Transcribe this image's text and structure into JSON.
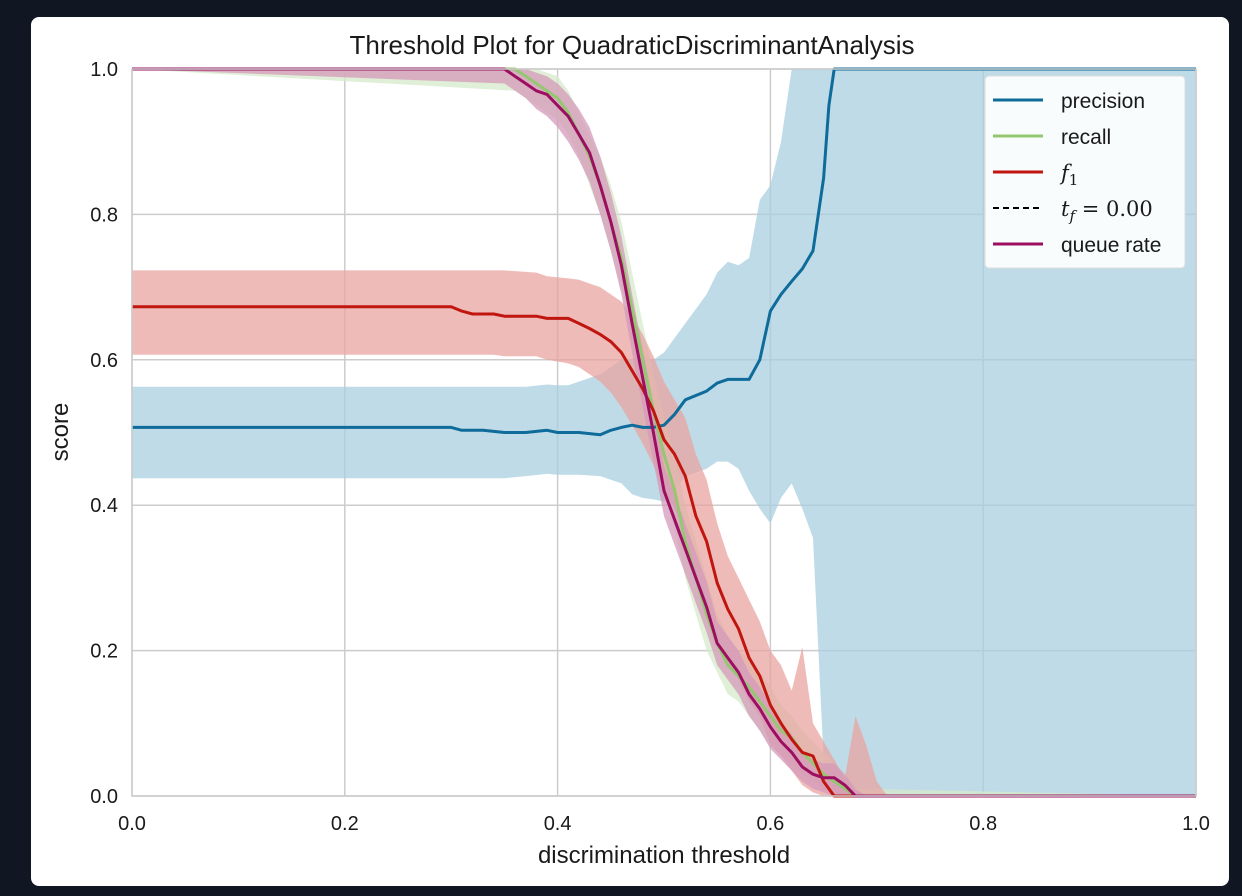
{
  "chart_data": {
    "type": "line",
    "title": "Threshold Plot for QuadraticDiscriminantAnalysis",
    "xlabel": "discrimination threshold",
    "ylabel": "score",
    "xlim": [
      0.0,
      1.0
    ],
    "ylim": [
      0.0,
      1.0
    ],
    "xticks": [
      "0.0",
      "0.2",
      "0.4",
      "0.6",
      "0.8",
      "1.0"
    ],
    "yticks": [
      "0.0",
      "0.2",
      "0.4",
      "0.6",
      "0.8",
      "1.0"
    ],
    "grid": true,
    "legend_position": "upper-right",
    "series": [
      {
        "name": "precision",
        "color": "#0e6b9a",
        "band_color": "#a9cfe0",
        "x": [
          0.0,
          0.3,
          0.31,
          0.33,
          0.35,
          0.37,
          0.39,
          0.4,
          0.41,
          0.42,
          0.44,
          0.45,
          0.46,
          0.47,
          0.48,
          0.49,
          0.5,
          0.51,
          0.52,
          0.54,
          0.55,
          0.56,
          0.57,
          0.58,
          0.59,
          0.6,
          0.61,
          0.62,
          0.63,
          0.64,
          0.65,
          0.655,
          0.66,
          0.665,
          1.0
        ],
        "y": [
          0.507,
          0.507,
          0.503,
          0.503,
          0.5,
          0.5,
          0.503,
          0.5,
          0.5,
          0.5,
          0.497,
          0.503,
          0.507,
          0.51,
          0.507,
          0.507,
          0.51,
          0.525,
          0.545,
          0.557,
          0.568,
          0.573,
          0.573,
          0.573,
          0.6,
          0.667,
          0.69,
          0.708,
          0.725,
          0.75,
          0.85,
          0.95,
          1.0,
          1.0,
          1.0
        ],
        "lower": [
          0.437,
          0.437,
          0.437,
          0.437,
          0.437,
          0.44,
          0.443,
          0.442,
          0.442,
          0.442,
          0.44,
          0.435,
          0.43,
          0.415,
          0.41,
          0.408,
          0.405,
          0.42,
          0.44,
          0.45,
          0.46,
          0.46,
          0.45,
          0.42,
          0.395,
          0.375,
          0.41,
          0.43,
          0.395,
          0.355,
          0.05,
          0.0,
          0.0,
          0.0,
          0.0
        ],
        "upper": [
          0.563,
          0.563,
          0.563,
          0.563,
          0.563,
          0.563,
          0.566,
          0.565,
          0.565,
          0.57,
          0.58,
          0.59,
          0.6,
          0.6,
          0.605,
          0.6,
          0.61,
          0.63,
          0.65,
          0.69,
          0.72,
          0.735,
          0.73,
          0.74,
          0.82,
          0.84,
          0.9,
          1.0,
          1.0,
          1.0,
          1.0,
          1.0,
          1.0,
          1.0,
          1.0
        ]
      },
      {
        "name": "recall",
        "color": "#95c771",
        "band_color": "#d6e9c9",
        "x": [
          0.0,
          0.36,
          0.38,
          0.4,
          0.41,
          0.42,
          0.43,
          0.44,
          0.45,
          0.46,
          0.47,
          0.48,
          0.49,
          0.5,
          0.51,
          0.52,
          0.53,
          0.54,
          0.55,
          0.56,
          0.57,
          0.58,
          0.59,
          0.6,
          0.61,
          0.62,
          0.63,
          0.64,
          0.65,
          0.66,
          0.67,
          0.68,
          1.0
        ],
        "y": [
          1.0,
          1.0,
          0.98,
          0.96,
          0.94,
          0.91,
          0.88,
          0.84,
          0.79,
          0.74,
          0.67,
          0.6,
          0.53,
          0.47,
          0.42,
          0.35,
          0.3,
          0.25,
          0.21,
          0.18,
          0.165,
          0.15,
          0.13,
          0.11,
          0.09,
          0.08,
          0.06,
          0.045,
          0.03,
          0.02,
          0.01,
          0.0,
          0.0
        ],
        "lower": [
          1.0,
          0.97,
          0.95,
          0.93,
          0.91,
          0.88,
          0.84,
          0.8,
          0.75,
          0.7,
          0.63,
          0.55,
          0.48,
          0.42,
          0.37,
          0.3,
          0.25,
          0.2,
          0.17,
          0.14,
          0.13,
          0.11,
          0.09,
          0.07,
          0.055,
          0.045,
          0.03,
          0.02,
          0.01,
          0.0,
          0.0,
          0.0,
          0.0
        ],
        "upper": [
          1.0,
          1.0,
          1.0,
          0.99,
          0.97,
          0.94,
          0.91,
          0.88,
          0.84,
          0.79,
          0.72,
          0.65,
          0.58,
          0.52,
          0.47,
          0.4,
          0.35,
          0.3,
          0.25,
          0.22,
          0.2,
          0.19,
          0.17,
          0.15,
          0.125,
          0.11,
          0.09,
          0.075,
          0.06,
          0.045,
          0.03,
          0.01,
          0.0
        ]
      },
      {
        "name": "f1",
        "color": "#c0160f",
        "band_color": "#e8a4a1",
        "x": [
          0.0,
          0.3,
          0.31,
          0.32,
          0.34,
          0.35,
          0.38,
          0.39,
          0.41,
          0.42,
          0.43,
          0.44,
          0.45,
          0.46,
          0.47,
          0.48,
          0.49,
          0.5,
          0.51,
          0.52,
          0.53,
          0.54,
          0.55,
          0.56,
          0.57,
          0.58,
          0.59,
          0.6,
          0.61,
          0.62,
          0.63,
          0.64,
          0.65,
          0.66,
          0.67,
          0.68,
          0.69,
          0.7,
          0.71,
          1.0
        ],
        "y": [
          0.673,
          0.673,
          0.667,
          0.663,
          0.663,
          0.66,
          0.66,
          0.657,
          0.657,
          0.65,
          0.643,
          0.635,
          0.625,
          0.61,
          0.585,
          0.56,
          0.53,
          0.49,
          0.47,
          0.44,
          0.385,
          0.35,
          0.293,
          0.257,
          0.23,
          0.19,
          0.165,
          0.125,
          0.1,
          0.078,
          0.06,
          0.055,
          0.02,
          0.0,
          0.0,
          0.0,
          0.0,
          0.0,
          0.0,
          0.0
        ],
        "lower": [
          0.607,
          0.607,
          0.607,
          0.607,
          0.607,
          0.605,
          0.605,
          0.6,
          0.595,
          0.59,
          0.58,
          0.57,
          0.555,
          0.535,
          0.51,
          0.485,
          0.455,
          0.42,
          0.395,
          0.36,
          0.3,
          0.265,
          0.215,
          0.185,
          0.16,
          0.13,
          0.11,
          0.07,
          0.055,
          0.035,
          0.015,
          0.005,
          0.0,
          0.0,
          0.0,
          0.0,
          0.0,
          0.0,
          0.0,
          0.0
        ],
        "upper": [
          0.723,
          0.723,
          0.723,
          0.723,
          0.723,
          0.723,
          0.72,
          0.715,
          0.712,
          0.71,
          0.705,
          0.7,
          0.69,
          0.68,
          0.66,
          0.635,
          0.605,
          0.57,
          0.545,
          0.52,
          0.47,
          0.435,
          0.375,
          0.33,
          0.3,
          0.27,
          0.24,
          0.2,
          0.18,
          0.145,
          0.205,
          0.1,
          0.075,
          0.05,
          0.025,
          0.11,
          0.07,
          0.02,
          0.0,
          0.0
        ]
      },
      {
        "name": "queue rate",
        "color": "#9c0f60",
        "band_color": "#d49ab9",
        "x": [
          0.0,
          0.35,
          0.36,
          0.37,
          0.38,
          0.39,
          0.4,
          0.41,
          0.42,
          0.43,
          0.44,
          0.45,
          0.46,
          0.47,
          0.48,
          0.49,
          0.5,
          0.51,
          0.52,
          0.53,
          0.54,
          0.55,
          0.56,
          0.57,
          0.58,
          0.59,
          0.6,
          0.61,
          0.62,
          0.63,
          0.64,
          0.65,
          0.66,
          0.67,
          0.68,
          0.69,
          1.0
        ],
        "y": [
          1.0,
          1.0,
          0.99,
          0.98,
          0.97,
          0.965,
          0.95,
          0.935,
          0.91,
          0.885,
          0.84,
          0.79,
          0.73,
          0.65,
          0.575,
          0.5,
          0.42,
          0.38,
          0.34,
          0.3,
          0.26,
          0.21,
          0.19,
          0.17,
          0.14,
          0.12,
          0.095,
          0.075,
          0.06,
          0.04,
          0.03,
          0.025,
          0.025,
          0.015,
          0.0,
          0.0,
          0.0
        ],
        "lower": [
          1.0,
          0.98,
          0.97,
          0.96,
          0.945,
          0.935,
          0.92,
          0.9,
          0.875,
          0.845,
          0.8,
          0.75,
          0.69,
          0.61,
          0.535,
          0.46,
          0.385,
          0.345,
          0.305,
          0.265,
          0.225,
          0.18,
          0.16,
          0.14,
          0.11,
          0.09,
          0.065,
          0.05,
          0.035,
          0.02,
          0.01,
          0.005,
          0.0,
          0.0,
          0.0,
          0.0,
          0.0
        ],
        "upper": [
          1.0,
          1.0,
          1.0,
          1.0,
          0.995,
          0.99,
          0.98,
          0.965,
          0.945,
          0.92,
          0.88,
          0.83,
          0.77,
          0.69,
          0.615,
          0.54,
          0.455,
          0.415,
          0.375,
          0.335,
          0.295,
          0.24,
          0.22,
          0.2,
          0.17,
          0.15,
          0.125,
          0.1,
          0.085,
          0.06,
          0.05,
          0.045,
          0.045,
          0.03,
          0.01,
          0.0,
          0.0
        ]
      }
    ],
    "threshold_marker": {
      "label": "t_f = 0.00",
      "value": 0.0,
      "style": "dashed",
      "color": "#000000"
    },
    "legend": [
      {
        "label": "precision",
        "color": "#0e6b9a",
        "style": "solid"
      },
      {
        "label": "recall",
        "color": "#95c771",
        "style": "solid"
      },
      {
        "label": "f",
        "sub": "1",
        "color": "#c0160f",
        "style": "solid"
      },
      {
        "label": "t",
        "sub": "f",
        "suffix": " = 0.00",
        "color": "#000000",
        "style": "dashed"
      },
      {
        "label": "queue rate",
        "color": "#9c0f60",
        "style": "solid"
      }
    ]
  }
}
